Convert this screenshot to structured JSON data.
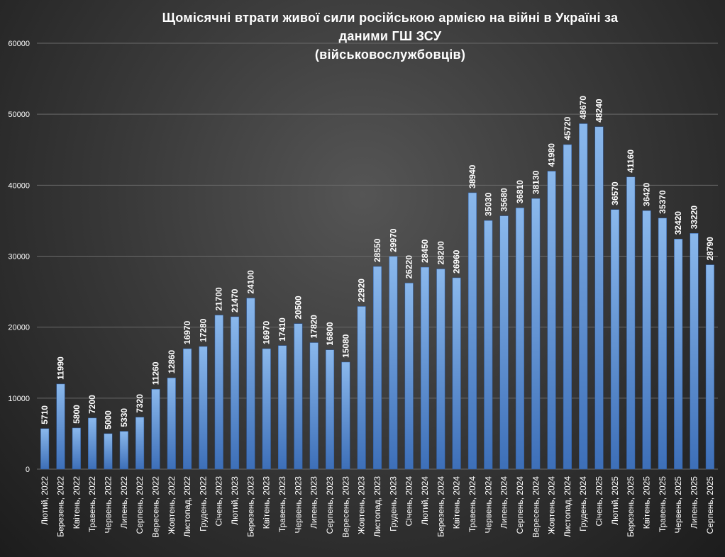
{
  "chart_data": {
    "type": "bar",
    "title_lines": [
      "Щомісячні  втрати живої сили російською  армією  на війні  в Україні  за",
      "даними  ГШ ЗСУ",
      "(військовослужбовців)"
    ],
    "categories": [
      "Лютий, 2022",
      "Березень, 2022",
      "Квітень, 2022",
      "Травень, 2022",
      "Червень, 2022",
      "Липень, 2022",
      "Серпень, 2022",
      "Вересень, 2022",
      "Жовтень, 2022",
      "Листопад, 2022",
      "Грудень, 2022",
      "Січень, 2023",
      "Лютий, 2023",
      "Березень, 2023",
      "Квітень, 2023",
      "Травень, 2023",
      "Червень, 2023",
      "Липень, 2023",
      "Серпень, 2023",
      "Вересень, 2023",
      "Жовтень, 2023",
      "Листопад, 2023",
      "Грудень, 2023",
      "Січень, 2024",
      "Лютий, 2024",
      "Березень, 2024",
      "Квітень, 2024",
      "Травень, 2024",
      "Червень, 2024",
      "Липень, 2024",
      "Серпень, 2024",
      "Вересень, 2024",
      "Жовтень, 2024",
      "Листопад, 2024",
      "Грудень, 2024",
      "Січень, 2025",
      "Лютий, 2025",
      "Березень, 2025",
      "Квітень, 2025",
      "Травень, 2025",
      "Червень, 2025",
      "Липень, 2025",
      "Серпень, 2025"
    ],
    "values": [
      5710,
      11990,
      5800,
      7200,
      5000,
      5330,
      7320,
      11260,
      12860,
      16970,
      17280,
      21700,
      21470,
      24100,
      16970,
      17410,
      20500,
      17820,
      16800,
      15080,
      22920,
      28550,
      29970,
      26220,
      28450,
      28200,
      26960,
      38940,
      35030,
      35680,
      36810,
      38130,
      41980,
      45720,
      48670,
      48240,
      36570,
      41160,
      36420,
      35370,
      32420,
      33220,
      28790
    ],
    "ylim": [
      0,
      60000
    ],
    "yticks": [
      "0",
      "10000",
      "20000",
      "30000",
      "40000",
      "50000",
      "60000"
    ],
    "grid": true,
    "legend": "none",
    "colors": {
      "bar_top": "#8ab8ec",
      "bar_bottom": "#3d6fb8",
      "grid": "#6a6a6a",
      "text": "#ffffff"
    }
  }
}
